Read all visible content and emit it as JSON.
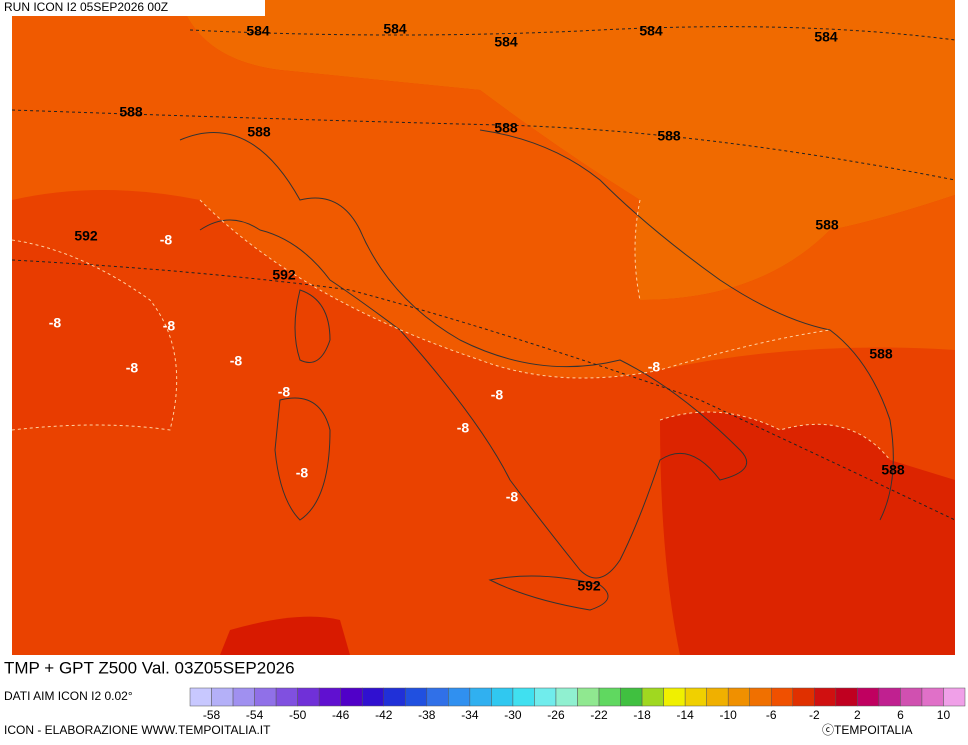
{
  "header": {
    "run": "RUN ICON I2 05SEP2026 00Z"
  },
  "map": {
    "contour_labels": [
      "584",
      "584",
      "584",
      "584",
      "584",
      "588",
      "588",
      "588",
      "588",
      "588",
      "588",
      "588",
      "592",
      "592",
      "592",
      "-8",
      "-8",
      "-8",
      "-8",
      "-8",
      "-8",
      "-8",
      "-8",
      "-8",
      "-8",
      "-8"
    ]
  },
  "footer": {
    "title": "TMP + GPT Z500 Val. 03Z05SEP2026",
    "source": "DATI AIM ICON I2 0.02°",
    "credit": "ICON - ELABORAZIONE WWW.TEMPOITALIA.IT",
    "copyright": "ⓒTEMPOITALIA"
  },
  "colorbar": {
    "ticks": [
      -58,
      -54,
      -50,
      -46,
      -42,
      -38,
      -34,
      -30,
      -26,
      -22,
      -18,
      -14,
      -10,
      -6,
      -2,
      2,
      6,
      10
    ],
    "colors": [
      "#c8c8ff",
      "#b4b0f8",
      "#a090f0",
      "#9070e8",
      "#8050e0",
      "#7030d8",
      "#6010d0",
      "#5000c8",
      "#3010d0",
      "#2030d8",
      "#2050e0",
      "#3070e8",
      "#3090f0",
      "#30b0f0",
      "#30c8f0",
      "#40e0f0",
      "#70ecec",
      "#90f0d0",
      "#90e890",
      "#60d860",
      "#40c040",
      "#a0d820",
      "#f0f000",
      "#f0d000",
      "#f0b000",
      "#f09000",
      "#f07000",
      "#f05000",
      "#e03000",
      "#d01010",
      "#c00020",
      "#c00060",
      "#c02090",
      "#d050b0",
      "#e070c8",
      "#f0a0e8"
    ]
  }
}
